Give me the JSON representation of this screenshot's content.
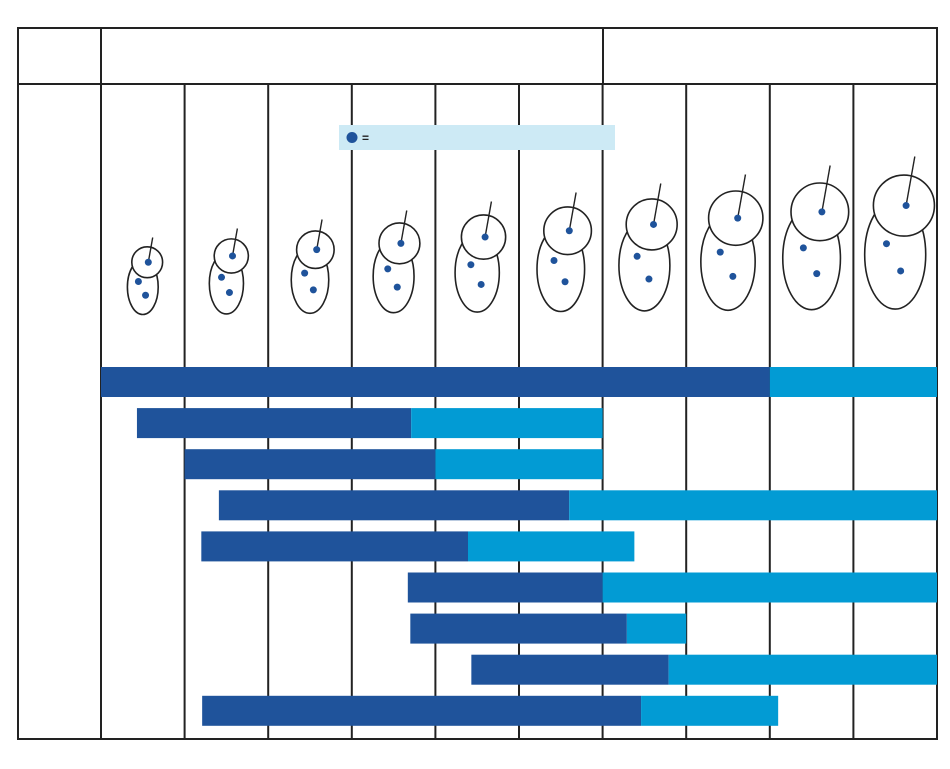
{
  "legend": {
    "symbol": "="
  },
  "columns": 10,
  "colors": {
    "major": "#1f539b",
    "minor": "#029bd4",
    "legend_bg": "#cdeaf5"
  },
  "rows": [
    {
      "start": 0,
      "switch": 8,
      "end": 10
    },
    {
      "start": 0.43,
      "switch": 3.71,
      "end": 6
    },
    {
      "start": 1,
      "switch": 4,
      "end": 6
    },
    {
      "start": 1.41,
      "switch": 5.6,
      "end": 10
    },
    {
      "start": 1.2,
      "switch": 4.39,
      "end": 6.38
    },
    {
      "start": 3.67,
      "switch": 6,
      "end": 10
    },
    {
      "start": 3.7,
      "switch": 6.29,
      "end": 7
    },
    {
      "start": 4.43,
      "switch": 6.79,
      "end": 10
    },
    {
      "start": 1.21,
      "switch": 6.46,
      "end": 8.1
    }
  ]
}
